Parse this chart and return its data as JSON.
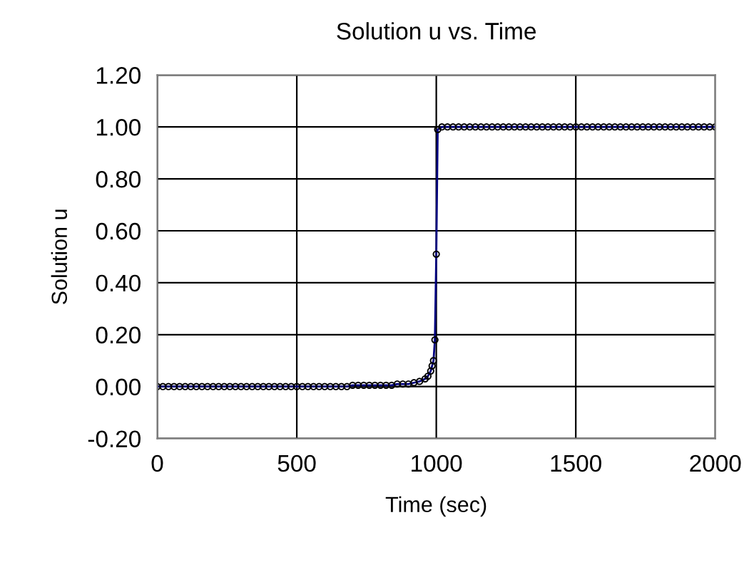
{
  "chart_data": {
    "type": "line",
    "title": "Solution u vs. Time",
    "xlabel": "Time (sec)",
    "ylabel": "Solution u",
    "xlim": [
      0,
      2000
    ],
    "xticks": [
      0,
      500,
      1000,
      1500,
      2000
    ],
    "ylim": [
      -0.2,
      1.2
    ],
    "yticks": [
      {
        "value": -0.2,
        "label": "-0.20"
      },
      {
        "value": 0,
        "label": "0.00"
      },
      {
        "value": 0.2,
        "label": "0.20"
      },
      {
        "value": 0.4,
        "label": "0.40"
      },
      {
        "value": 0.6,
        "label": "0.60"
      },
      {
        "value": 0.8,
        "label": "0.80"
      },
      {
        "value": 1.0,
        "label": "1.00"
      },
      {
        "value": 1.2,
        "label": "1.20"
      }
    ],
    "grid": true,
    "legend": false,
    "marker": "circle",
    "line_style": "solid",
    "x": [
      0,
      20,
      40,
      60,
      80,
      100,
      120,
      140,
      160,
      180,
      200,
      220,
      240,
      260,
      280,
      300,
      320,
      340,
      360,
      380,
      400,
      420,
      440,
      460,
      480,
      500,
      520,
      540,
      560,
      580,
      600,
      620,
      640,
      660,
      680,
      700,
      720,
      740,
      760,
      780,
      800,
      820,
      840,
      860,
      880,
      900,
      920,
      940,
      960,
      970,
      980,
      985,
      990,
      995,
      1000,
      1005,
      1020,
      1040,
      1060,
      1080,
      1100,
      1120,
      1140,
      1160,
      1180,
      1200,
      1220,
      1240,
      1260,
      1280,
      1300,
      1320,
      1340,
      1360,
      1380,
      1400,
      1420,
      1440,
      1460,
      1480,
      1500,
      1520,
      1540,
      1560,
      1580,
      1600,
      1620,
      1640,
      1660,
      1680,
      1700,
      1720,
      1740,
      1760,
      1780,
      1800,
      1820,
      1840,
      1860,
      1880,
      1900,
      1920,
      1940,
      1960,
      1980,
      2000
    ],
    "series": [
      {
        "color": "#000080",
        "values": [
          0,
          0,
          0,
          0,
          0,
          0,
          0,
          0,
          0,
          0,
          0,
          0,
          0,
          0,
          0,
          0,
          0,
          0,
          0,
          0,
          0,
          0,
          0,
          0,
          0,
          0,
          0,
          0,
          0,
          0,
          0,
          0,
          0,
          0,
          0,
          0.005,
          0.005,
          0.005,
          0.005,
          0.005,
          0.005,
          0.005,
          0.005,
          0.01,
          0.01,
          0.01,
          0.015,
          0.02,
          0.03,
          0.04,
          0.06,
          0.08,
          0.1,
          0.18,
          0.51,
          0.99,
          1,
          1,
          1,
          1,
          1,
          1,
          1,
          1,
          1,
          1,
          1,
          1,
          1,
          1,
          1,
          1,
          1,
          1,
          1,
          1,
          1,
          1,
          1,
          1,
          1,
          1,
          1,
          1,
          1,
          1,
          1,
          1,
          1,
          1,
          1,
          1,
          1,
          1,
          1,
          1,
          1,
          1,
          1,
          1,
          1,
          1,
          1,
          1,
          1,
          1
        ]
      }
    ]
  }
}
